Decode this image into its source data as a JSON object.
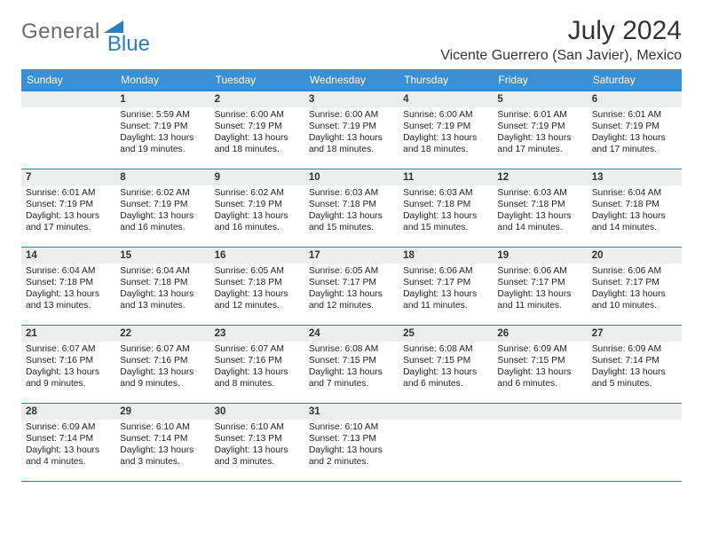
{
  "logo": {
    "text1": "General",
    "text2": "Blue",
    "color1": "#6a6a6a",
    "color2": "#2a7dc0",
    "triangle_color": "#2a7dc0"
  },
  "title": "July 2024",
  "location": "Vicente Guerrero (San Javier), Mexico",
  "colors": {
    "header_bg": "#3b8fd4",
    "header_text": "#ffffff",
    "daynum_bg": "#eceded",
    "border": "#2a7dc0",
    "body_text": "#222222"
  },
  "day_headers": [
    "Sunday",
    "Monday",
    "Tuesday",
    "Wednesday",
    "Thursday",
    "Friday",
    "Saturday"
  ],
  "weeks": [
    [
      {
        "n": "",
        "sr": "",
        "ss": "",
        "d1": "",
        "d2": ""
      },
      {
        "n": "1",
        "sr": "Sunrise: 5:59 AM",
        "ss": "Sunset: 7:19 PM",
        "d1": "Daylight: 13 hours",
        "d2": "and 19 minutes."
      },
      {
        "n": "2",
        "sr": "Sunrise: 6:00 AM",
        "ss": "Sunset: 7:19 PM",
        "d1": "Daylight: 13 hours",
        "d2": "and 18 minutes."
      },
      {
        "n": "3",
        "sr": "Sunrise: 6:00 AM",
        "ss": "Sunset: 7:19 PM",
        "d1": "Daylight: 13 hours",
        "d2": "and 18 minutes."
      },
      {
        "n": "4",
        "sr": "Sunrise: 6:00 AM",
        "ss": "Sunset: 7:19 PM",
        "d1": "Daylight: 13 hours",
        "d2": "and 18 minutes."
      },
      {
        "n": "5",
        "sr": "Sunrise: 6:01 AM",
        "ss": "Sunset: 7:19 PM",
        "d1": "Daylight: 13 hours",
        "d2": "and 17 minutes."
      },
      {
        "n": "6",
        "sr": "Sunrise: 6:01 AM",
        "ss": "Sunset: 7:19 PM",
        "d1": "Daylight: 13 hours",
        "d2": "and 17 minutes."
      }
    ],
    [
      {
        "n": "7",
        "sr": "Sunrise: 6:01 AM",
        "ss": "Sunset: 7:19 PM",
        "d1": "Daylight: 13 hours",
        "d2": "and 17 minutes."
      },
      {
        "n": "8",
        "sr": "Sunrise: 6:02 AM",
        "ss": "Sunset: 7:19 PM",
        "d1": "Daylight: 13 hours",
        "d2": "and 16 minutes."
      },
      {
        "n": "9",
        "sr": "Sunrise: 6:02 AM",
        "ss": "Sunset: 7:19 PM",
        "d1": "Daylight: 13 hours",
        "d2": "and 16 minutes."
      },
      {
        "n": "10",
        "sr": "Sunrise: 6:03 AM",
        "ss": "Sunset: 7:18 PM",
        "d1": "Daylight: 13 hours",
        "d2": "and 15 minutes."
      },
      {
        "n": "11",
        "sr": "Sunrise: 6:03 AM",
        "ss": "Sunset: 7:18 PM",
        "d1": "Daylight: 13 hours",
        "d2": "and 15 minutes."
      },
      {
        "n": "12",
        "sr": "Sunrise: 6:03 AM",
        "ss": "Sunset: 7:18 PM",
        "d1": "Daylight: 13 hours",
        "d2": "and 14 minutes."
      },
      {
        "n": "13",
        "sr": "Sunrise: 6:04 AM",
        "ss": "Sunset: 7:18 PM",
        "d1": "Daylight: 13 hours",
        "d2": "and 14 minutes."
      }
    ],
    [
      {
        "n": "14",
        "sr": "Sunrise: 6:04 AM",
        "ss": "Sunset: 7:18 PM",
        "d1": "Daylight: 13 hours",
        "d2": "and 13 minutes."
      },
      {
        "n": "15",
        "sr": "Sunrise: 6:04 AM",
        "ss": "Sunset: 7:18 PM",
        "d1": "Daylight: 13 hours",
        "d2": "and 13 minutes."
      },
      {
        "n": "16",
        "sr": "Sunrise: 6:05 AM",
        "ss": "Sunset: 7:18 PM",
        "d1": "Daylight: 13 hours",
        "d2": "and 12 minutes."
      },
      {
        "n": "17",
        "sr": "Sunrise: 6:05 AM",
        "ss": "Sunset: 7:17 PM",
        "d1": "Daylight: 13 hours",
        "d2": "and 12 minutes."
      },
      {
        "n": "18",
        "sr": "Sunrise: 6:06 AM",
        "ss": "Sunset: 7:17 PM",
        "d1": "Daylight: 13 hours",
        "d2": "and 11 minutes."
      },
      {
        "n": "19",
        "sr": "Sunrise: 6:06 AM",
        "ss": "Sunset: 7:17 PM",
        "d1": "Daylight: 13 hours",
        "d2": "and 11 minutes."
      },
      {
        "n": "20",
        "sr": "Sunrise: 6:06 AM",
        "ss": "Sunset: 7:17 PM",
        "d1": "Daylight: 13 hours",
        "d2": "and 10 minutes."
      }
    ],
    [
      {
        "n": "21",
        "sr": "Sunrise: 6:07 AM",
        "ss": "Sunset: 7:16 PM",
        "d1": "Daylight: 13 hours",
        "d2": "and 9 minutes."
      },
      {
        "n": "22",
        "sr": "Sunrise: 6:07 AM",
        "ss": "Sunset: 7:16 PM",
        "d1": "Daylight: 13 hours",
        "d2": "and 9 minutes."
      },
      {
        "n": "23",
        "sr": "Sunrise: 6:07 AM",
        "ss": "Sunset: 7:16 PM",
        "d1": "Daylight: 13 hours",
        "d2": "and 8 minutes."
      },
      {
        "n": "24",
        "sr": "Sunrise: 6:08 AM",
        "ss": "Sunset: 7:15 PM",
        "d1": "Daylight: 13 hours",
        "d2": "and 7 minutes."
      },
      {
        "n": "25",
        "sr": "Sunrise: 6:08 AM",
        "ss": "Sunset: 7:15 PM",
        "d1": "Daylight: 13 hours",
        "d2": "and 6 minutes."
      },
      {
        "n": "26",
        "sr": "Sunrise: 6:09 AM",
        "ss": "Sunset: 7:15 PM",
        "d1": "Daylight: 13 hours",
        "d2": "and 6 minutes."
      },
      {
        "n": "27",
        "sr": "Sunrise: 6:09 AM",
        "ss": "Sunset: 7:14 PM",
        "d1": "Daylight: 13 hours",
        "d2": "and 5 minutes."
      }
    ],
    [
      {
        "n": "28",
        "sr": "Sunrise: 6:09 AM",
        "ss": "Sunset: 7:14 PM",
        "d1": "Daylight: 13 hours",
        "d2": "and 4 minutes."
      },
      {
        "n": "29",
        "sr": "Sunrise: 6:10 AM",
        "ss": "Sunset: 7:14 PM",
        "d1": "Daylight: 13 hours",
        "d2": "and 3 minutes."
      },
      {
        "n": "30",
        "sr": "Sunrise: 6:10 AM",
        "ss": "Sunset: 7:13 PM",
        "d1": "Daylight: 13 hours",
        "d2": "and 3 minutes."
      },
      {
        "n": "31",
        "sr": "Sunrise: 6:10 AM",
        "ss": "Sunset: 7:13 PM",
        "d1": "Daylight: 13 hours",
        "d2": "and 2 minutes."
      },
      {
        "n": "",
        "sr": "",
        "ss": "",
        "d1": "",
        "d2": ""
      },
      {
        "n": "",
        "sr": "",
        "ss": "",
        "d1": "",
        "d2": ""
      },
      {
        "n": "",
        "sr": "",
        "ss": "",
        "d1": "",
        "d2": ""
      }
    ]
  ]
}
